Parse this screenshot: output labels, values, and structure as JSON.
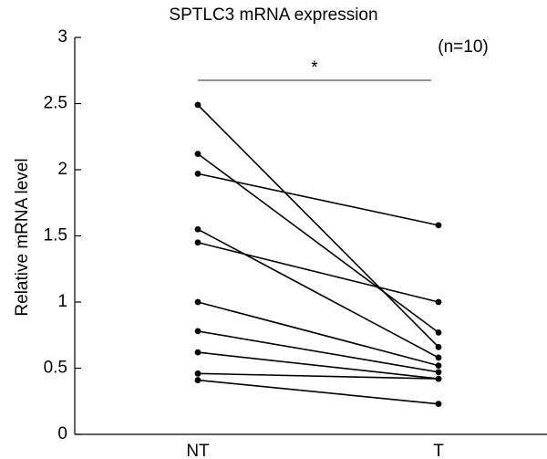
{
  "chart_data": {
    "type": "line",
    "title": "SPTLC3 mRNA expression",
    "xlabel": "",
    "ylabel": "Relative mRNA level",
    "categories": [
      "NT",
      "T"
    ],
    "ylim": [
      0,
      3
    ],
    "yticks": [
      "0",
      "0.5",
      "1",
      "1.5",
      "2",
      "2.5",
      "3"
    ],
    "sample_size_label": "(n=10)",
    "significance_label": "*",
    "grid": false,
    "legend": "none",
    "pairs": [
      {
        "values": [
          2.49,
          0.66
        ]
      },
      {
        "values": [
          2.12,
          0.77
        ]
      },
      {
        "values": [
          1.97,
          1.58
        ]
      },
      {
        "values": [
          1.55,
          0.58
        ]
      },
      {
        "values": [
          1.45,
          1.0
        ]
      },
      {
        "values": [
          1.0,
          0.52
        ]
      },
      {
        "values": [
          0.78,
          0.47
        ]
      },
      {
        "values": [
          0.62,
          0.42
        ]
      },
      {
        "values": [
          0.46,
          0.42
        ]
      },
      {
        "values": [
          0.41,
          0.23
        ]
      }
    ]
  }
}
